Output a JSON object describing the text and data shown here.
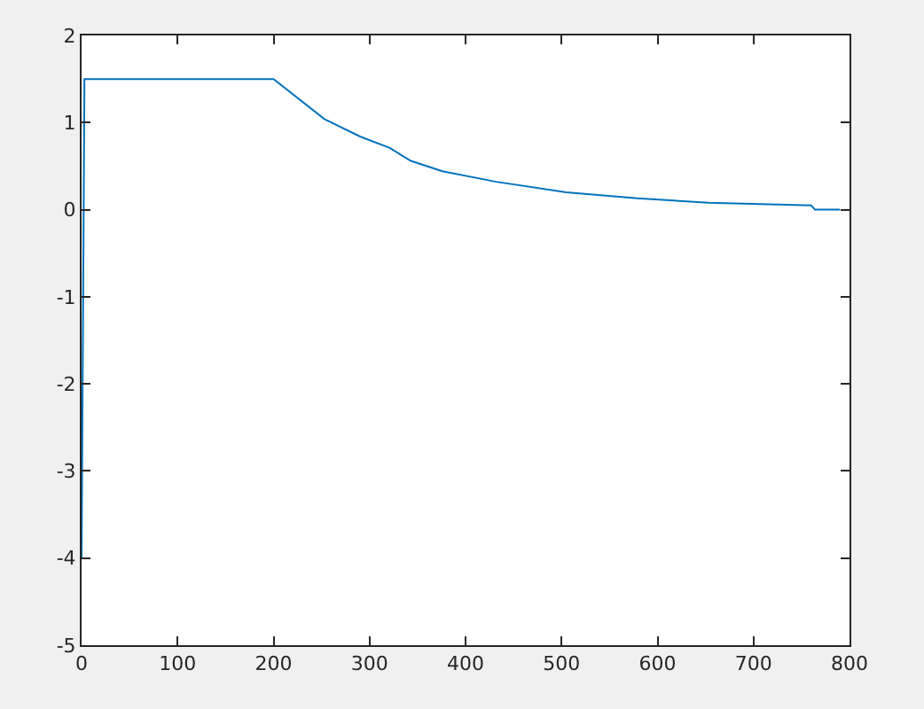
{
  "chart_data": {
    "type": "line",
    "x": [
      0,
      3,
      200,
      253,
      290,
      321,
      343,
      376,
      432,
      505,
      579,
      653,
      760,
      764,
      790
    ],
    "series": [
      {
        "color": "#0072bd",
        "values": [
          -4.0,
          1.5,
          1.5,
          1.04,
          0.84,
          0.71,
          0.56,
          0.44,
          0.32,
          0.2,
          0.13,
          0.08,
          0.05,
          0,
          0
        ]
      }
    ],
    "xlim": [
      0,
      800
    ],
    "xticks": [
      0,
      100,
      200,
      300,
      400,
      500,
      600,
      700,
      800
    ],
    "ylim": [
      -5,
      2
    ],
    "yticks": [
      -5,
      -4,
      -3,
      -2,
      -1,
      0,
      1,
      2
    ],
    "grid": false,
    "marker": "none",
    "line_style": "solid"
  }
}
